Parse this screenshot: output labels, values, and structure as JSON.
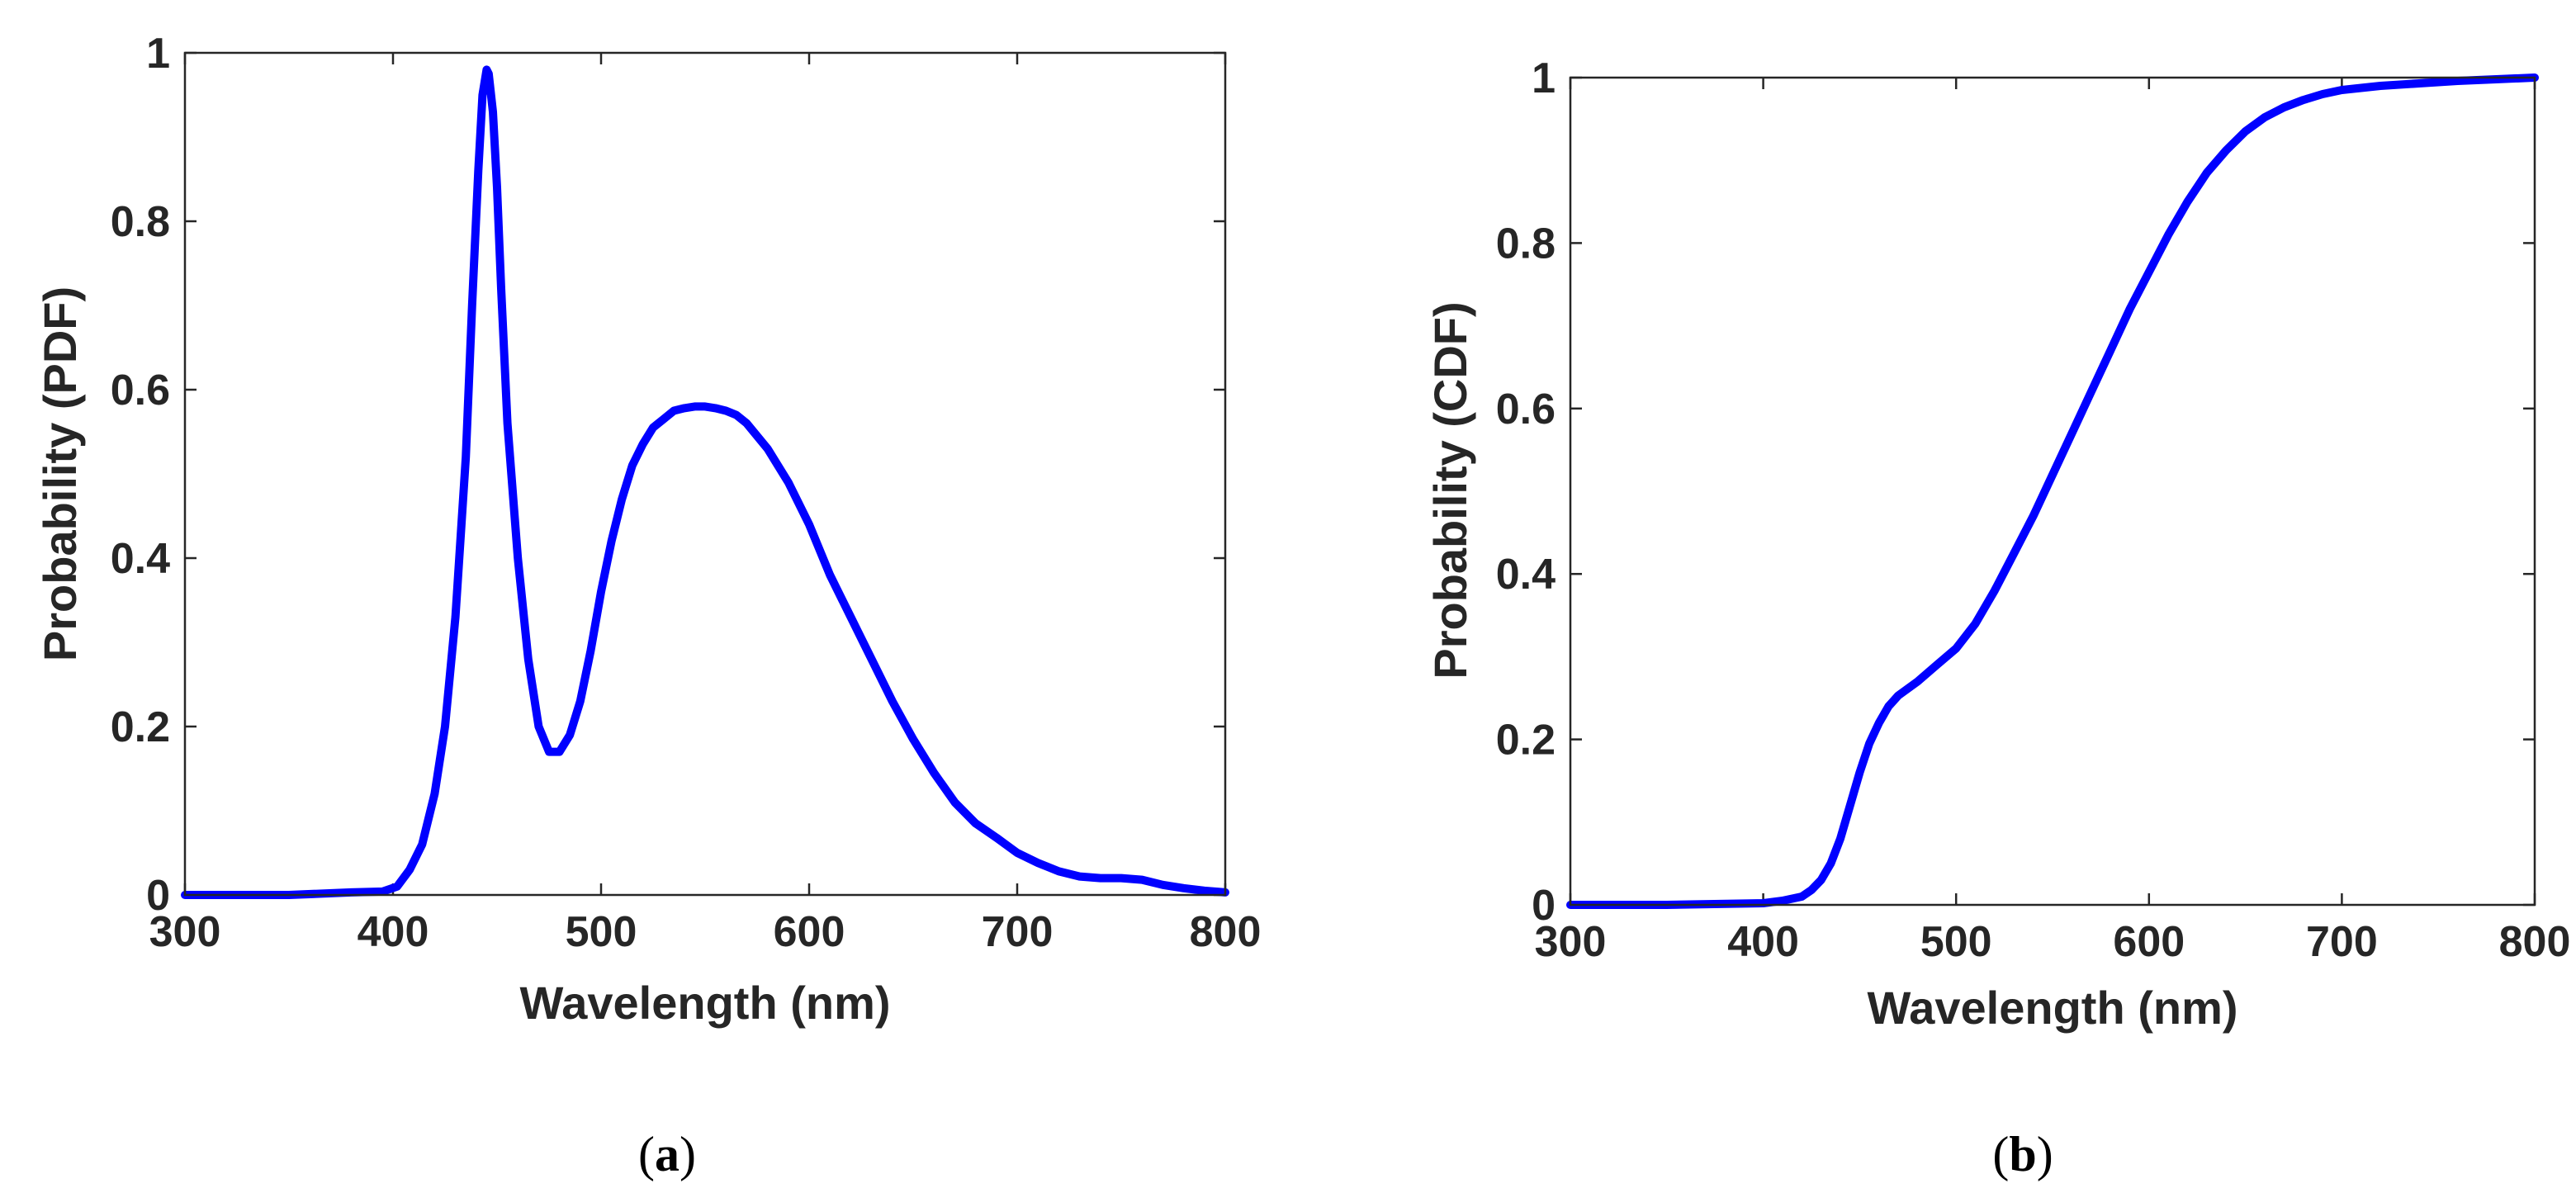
{
  "colors": {
    "series": "#0000ff",
    "axes": "#262626",
    "background": "#ffffff"
  },
  "chart_data": [
    {
      "type": "line",
      "id": "a",
      "title": "",
      "caption": {
        "open": "(",
        "letter": "a",
        "close": ")"
      },
      "xlabel": "Wavelength (nm)",
      "ylabel": "Probability (PDF)",
      "xlim": [
        300,
        800
      ],
      "ylim": [
        0,
        1
      ],
      "xticks": [
        300,
        400,
        500,
        600,
        700,
        800
      ],
      "yticks": [
        0,
        0.2,
        0.4,
        0.6,
        0.8,
        1
      ],
      "ytick_labels": [
        "0",
        "0.2",
        "0.4",
        "0.6",
        "0.8",
        "1"
      ],
      "grid": false,
      "series": [
        {
          "name": "PDF",
          "x": [
            300,
            350,
            380,
            395,
            402,
            408,
            414,
            420,
            425,
            430,
            435,
            438,
            441,
            443,
            445,
            446,
            448,
            450,
            452,
            455,
            460,
            465,
            470,
            475,
            480,
            485,
            490,
            495,
            500,
            505,
            510,
            515,
            520,
            525,
            530,
            535,
            540,
            545,
            550,
            555,
            560,
            565,
            570,
            580,
            590,
            600,
            610,
            620,
            630,
            640,
            650,
            660,
            670,
            680,
            690,
            700,
            710,
            720,
            730,
            740,
            750,
            760,
            770,
            780,
            790,
            800
          ],
          "y": [
            0.0,
            0.0,
            0.003,
            0.004,
            0.01,
            0.03,
            0.06,
            0.12,
            0.2,
            0.33,
            0.52,
            0.7,
            0.86,
            0.95,
            0.98,
            0.975,
            0.93,
            0.84,
            0.72,
            0.56,
            0.4,
            0.28,
            0.2,
            0.17,
            0.17,
            0.19,
            0.23,
            0.29,
            0.36,
            0.42,
            0.47,
            0.51,
            0.535,
            0.555,
            0.565,
            0.575,
            0.578,
            0.58,
            0.58,
            0.578,
            0.575,
            0.57,
            0.56,
            0.53,
            0.49,
            0.44,
            0.38,
            0.33,
            0.28,
            0.23,
            0.185,
            0.145,
            0.11,
            0.085,
            0.068,
            0.05,
            0.038,
            0.028,
            0.022,
            0.02,
            0.02,
            0.018,
            0.012,
            0.008,
            0.005,
            0.003
          ]
        }
      ]
    },
    {
      "type": "line",
      "id": "b",
      "title": "",
      "caption": {
        "open": "(",
        "letter": "b",
        "close": ")"
      },
      "xlabel": "Wavelength (nm)",
      "ylabel": "Probability (CDF)",
      "xlim": [
        300,
        800
      ],
      "ylim": [
        0,
        1
      ],
      "xticks": [
        300,
        400,
        500,
        600,
        700,
        800
      ],
      "yticks": [
        0,
        0.2,
        0.4,
        0.6,
        0.8,
        1
      ],
      "ytick_labels": [
        "0",
        "0.2",
        "0.4",
        "0.6",
        "0.8",
        "1"
      ],
      "grid": false,
      "series": [
        {
          "name": "CDF",
          "x": [
            300,
            350,
            400,
            410,
            420,
            425,
            430,
            435,
            440,
            445,
            450,
            455,
            460,
            465,
            470,
            480,
            490,
            500,
            510,
            520,
            530,
            540,
            550,
            560,
            570,
            580,
            590,
            600,
            610,
            620,
            630,
            640,
            650,
            660,
            670,
            680,
            690,
            700,
            720,
            740,
            760,
            780,
            800
          ],
          "y": [
            0.0,
            0.0,
            0.002,
            0.005,
            0.01,
            0.018,
            0.03,
            0.05,
            0.08,
            0.12,
            0.16,
            0.195,
            0.22,
            0.24,
            0.253,
            0.27,
            0.29,
            0.31,
            0.34,
            0.38,
            0.425,
            0.47,
            0.52,
            0.57,
            0.62,
            0.67,
            0.72,
            0.765,
            0.81,
            0.85,
            0.885,
            0.912,
            0.935,
            0.952,
            0.964,
            0.973,
            0.98,
            0.985,
            0.99,
            0.993,
            0.996,
            0.998,
            1.0
          ]
        }
      ]
    }
  ]
}
